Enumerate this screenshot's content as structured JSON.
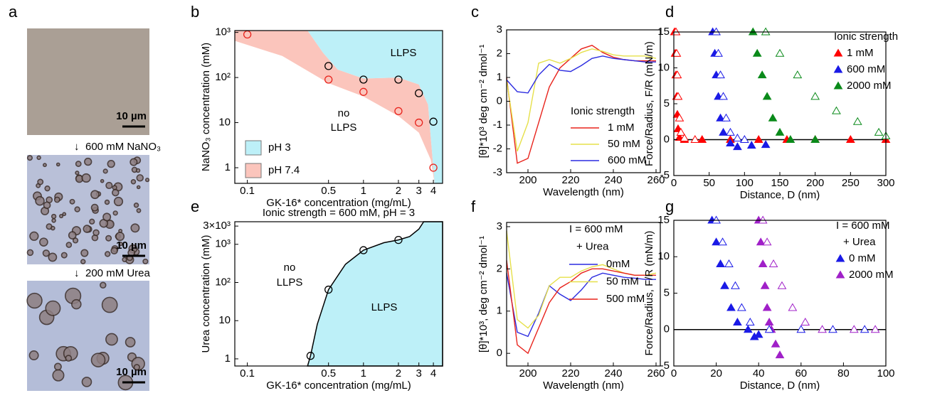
{
  "panel_a": {
    "label": "a",
    "steps": [
      "600 mM NaNO₃",
      "200 mM Urea"
    ],
    "scale_bars": [
      "10 µm",
      "10 µm",
      "10 µm"
    ]
  },
  "chart_data": [
    {
      "type": "phase",
      "panel": "b",
      "xlabel": "GK-16* concentration (mg/mL)",
      "ylabel": "NaNO₃ concentration (mM)",
      "xlog": true,
      "ylog": true,
      "xlim": [
        0.078,
        4.8
      ],
      "ylim": [
        0.45,
        1100
      ],
      "xticks": [
        0.1,
        0.5,
        1,
        2,
        3,
        4
      ],
      "yticks": [
        1,
        10,
        {
          "value": 100,
          "label": "10²"
        },
        {
          "value": 1000,
          "label": "10³"
        }
      ],
      "annotations": [
        "LLPS",
        "no",
        "LLPS"
      ],
      "series": [
        {
          "name": "pH 3",
          "color": "#bdf0f8",
          "marker_color": "#000000",
          "x": [
            0.5,
            1,
            2,
            3,
            4
          ],
          "values": [
            180,
            90,
            90,
            45,
            10.5
          ],
          "region": {
            "x": [
              0.33,
              0.45,
              0.6,
              1,
              2,
              3,
              3.6,
              4.1,
              4.8,
              4.8
            ],
            "y": [
              1100,
              350,
              150,
              95,
              100,
              70,
              25,
              0.45,
              0.45,
              1100
            ]
          }
        },
        {
          "name": "pH 7.4",
          "color": "#fbc5bc",
          "marker_color": "#e8231c",
          "x": [
            0.1,
            0.5,
            1,
            2,
            3,
            4
          ],
          "values": [
            900,
            90,
            48,
            18,
            10,
            1
          ],
          "region": {
            "x": [
              0.078,
              0.33,
              0.45,
              0.6,
              1,
              2,
              3,
              3.6,
              4.1,
              3.8,
              3,
              2,
              1,
              0.5,
              0.2,
              0.078
            ],
            "y": [
              1100,
              1100,
              350,
              150,
              95,
              100,
              70,
              25,
              0.45,
              1.5,
              6,
              14,
              38,
              75,
              300,
              650
            ]
          }
        }
      ]
    },
    {
      "type": "line",
      "panel": "c",
      "xlabel": "Wavelength (nm)",
      "ylabel": "[θ]*10³ deg cm⁻² dmol⁻¹",
      "xlim": [
        190,
        262
      ],
      "ylim": [
        -3,
        3
      ],
      "xticks": [
        200,
        220,
        240,
        260
      ],
      "yticks": [
        -3,
        -2,
        -1,
        0,
        1,
        2,
        3
      ],
      "legend_title": [
        "Ionic strength"
      ],
      "x": [
        190,
        195,
        200,
        205,
        210,
        215,
        220,
        225,
        230,
        235,
        240,
        245,
        250,
        255,
        260
      ],
      "series": [
        {
          "name": "1 mM",
          "color": "#e8231c",
          "values": [
            1.0,
            -2.6,
            -2.4,
            -0.9,
            0.6,
            1.4,
            1.8,
            2.2,
            2.35,
            2.05,
            1.85,
            1.75,
            1.7,
            1.7,
            1.7
          ]
        },
        {
          "name": "50 mM",
          "color": "#e6e04a",
          "values": [
            0.9,
            -2.1,
            -0.9,
            1.6,
            1.75,
            1.6,
            1.8,
            2.05,
            2.2,
            2.1,
            1.95,
            1.9,
            1.9,
            1.9,
            1.8
          ]
        },
        {
          "name": "600 mM",
          "color": "#2b2be0",
          "values": [
            0.9,
            0.4,
            0.35,
            1.1,
            1.55,
            1.3,
            1.25,
            1.5,
            1.8,
            1.9,
            1.8,
            1.75,
            1.7,
            1.65,
            1.65
          ]
        }
      ]
    },
    {
      "type": "scatter",
      "panel": "d",
      "xlabel": "Distance, D (nm)",
      "ylabel": "Force/Radius, F/R (mN/m)",
      "xlim": [
        0,
        300
      ],
      "ylim": [
        -5,
        15
      ],
      "xticks": [
        0,
        50,
        100,
        150,
        200,
        250,
        300
      ],
      "yticks": [
        -5,
        0,
        5,
        10,
        15
      ],
      "legend_title": [
        "Ionic strength"
      ],
      "series": [
        {
          "name": "1 mM",
          "color": "#ff0000",
          "filled": true,
          "x": [
            1,
            2,
            3,
            4,
            5,
            6,
            8,
            15,
            40,
            80,
            120,
            160,
            200,
            250,
            300
          ],
          "values": [
            15,
            12,
            9,
            6,
            3.5,
            1.5,
            0.3,
            0,
            0,
            0,
            0,
            0,
            0,
            0,
            0
          ]
        },
        {
          "name": "600 mM",
          "color": "#1a1ae6",
          "filled": true,
          "x": [
            55,
            58,
            60,
            63,
            66,
            70,
            80,
            90,
            110,
            130
          ],
          "values": [
            15,
            12,
            9,
            6,
            3,
            1,
            -0.5,
            -1,
            -0.8,
            -0.7
          ]
        },
        {
          "name": "2000 mM",
          "color": "#0a8a1a",
          "filled": true,
          "x": [
            112,
            118,
            125,
            132,
            140,
            150,
            165,
            200
          ],
          "values": [
            15,
            12,
            9,
            6,
            3,
            1,
            0,
            0
          ]
        },
        {
          "color": "#ff0000",
          "filled": false,
          "x": [
            3,
            4,
            5,
            6,
            8,
            10,
            15,
            30
          ],
          "values": [
            15,
            12,
            9,
            6,
            3,
            1,
            0.2,
            0
          ]
        },
        {
          "color": "#1a1ae6",
          "filled": false,
          "x": [
            60,
            63,
            66,
            70,
            74,
            80,
            90,
            100
          ],
          "values": [
            15,
            12,
            9,
            6,
            3,
            1,
            0.2,
            0
          ]
        },
        {
          "color": "#0a8a1a",
          "filled": false,
          "x": [
            130,
            150,
            175,
            200,
            230,
            260,
            290,
            300
          ],
          "values": [
            15,
            12,
            9,
            6,
            4,
            2.5,
            1,
            0.5
          ]
        }
      ]
    },
    {
      "type": "phase",
      "panel": "e",
      "title": "Ionic strength = 600 mM, pH = 3",
      "xlabel": "GK-16* concentration (mg/mL)",
      "ylabel": "Urea concentration (mM)",
      "xlog": true,
      "ylog": true,
      "xlim": [
        0.078,
        4.8
      ],
      "ylim": [
        0.65,
        3900
      ],
      "xticks": [
        0.1,
        0.5,
        1,
        2,
        3,
        4
      ],
      "yticks": [
        1,
        10,
        {
          "value": 100,
          "label": "10²"
        },
        {
          "value": 1000,
          "label": "10³"
        },
        {
          "value": 3000,
          "label": "3×10³"
        }
      ],
      "annotations": [
        "no",
        "LLPS",
        "LLPS"
      ],
      "series": [
        {
          "color": "#bdf0f8",
          "marker_color": "#000000",
          "edge_color": "#000000",
          "x": [
            0.35,
            0.5,
            1,
            2
          ],
          "values": [
            1.2,
            65,
            700,
            1300
          ],
          "region": {
            "x": [
              0.33,
              0.35,
              0.4,
              0.5,
              0.7,
              1,
              1.5,
              2,
              2.5,
              3,
              3.3,
              4.8,
              4.8
            ],
            "y": [
              0.65,
              1.2,
              8,
              65,
              300,
              700,
              1100,
              1300,
              1600,
              2500,
              3900,
              3900,
              0.65
            ]
          }
        }
      ]
    },
    {
      "type": "line",
      "panel": "f",
      "xlabel": "Wavelength (nm)",
      "ylabel": "[θ]*10³, deg cm⁻² dmol⁻¹",
      "xlim": [
        190,
        262
      ],
      "ylim": [
        -0.3,
        3.1
      ],
      "xticks": [
        200,
        220,
        240,
        260
      ],
      "yticks": [
        0,
        1,
        2,
        3
      ],
      "legend_title": [
        "I = 600 mM",
        "+ Urea"
      ],
      "x": [
        190,
        195,
        200,
        205,
        210,
        215,
        220,
        225,
        230,
        235,
        240,
        245,
        250,
        255,
        260
      ],
      "series": [
        {
          "name": "0mM",
          "color": "#2b2be0",
          "values": [
            1.9,
            0.5,
            0.4,
            0.95,
            1.6,
            1.4,
            1.25,
            1.5,
            1.8,
            1.9,
            1.85,
            1.8,
            1.78,
            1.75,
            1.75
          ]
        },
        {
          "name": "50 mM",
          "color": "#e6e04a",
          "values": [
            2.9,
            0.8,
            0.6,
            0.9,
            1.6,
            1.8,
            1.8,
            1.95,
            2.05,
            2.1,
            2.0,
            1.9,
            1.85,
            1.85,
            1.9
          ]
        },
        {
          "name": "500 mM",
          "color": "#e8231c",
          "values": [
            2.2,
            0.2,
            0.0,
            0.6,
            1.2,
            1.55,
            1.7,
            1.9,
            2.0,
            2.0,
            1.95,
            1.9,
            1.85,
            1.85,
            1.85
          ]
        }
      ]
    },
    {
      "type": "scatter",
      "panel": "g",
      "xlabel": "Distance, D (nm)",
      "ylabel": "Force/Radius, F/R (mN/m)",
      "xlim": [
        0,
        100
      ],
      "ylim": [
        -5,
        15
      ],
      "xticks": [
        0,
        20,
        40,
        60,
        80,
        100
      ],
      "yticks": [
        -5,
        0,
        5,
        10,
        15
      ],
      "legend_title": [
        "I = 600 mM",
        "+ Urea"
      ],
      "series": [
        {
          "name": "0 mM",
          "color": "#1a1ae6",
          "filled": true,
          "x": [
            18,
            20,
            22,
            24,
            27,
            30,
            35,
            38,
            40
          ],
          "values": [
            15,
            12,
            9,
            6,
            3,
            1,
            0,
            -1,
            -0.7
          ]
        },
        {
          "name": "2000 mM",
          "color": "#a020c8",
          "filled": true,
          "x": [
            40,
            41,
            42,
            43,
            44,
            45,
            46,
            48,
            50
          ],
          "values": [
            15,
            12,
            9,
            6,
            3,
            1,
            0,
            -2,
            -3.5
          ]
        },
        {
          "color": "#1a1ae6",
          "filled": false,
          "x": [
            20,
            23,
            26,
            29,
            32,
            36,
            45,
            60,
            75,
            90
          ],
          "values": [
            15,
            12,
            9,
            6,
            3,
            1,
            0,
            0,
            0,
            0
          ]
        },
        {
          "color": "#a020c8",
          "filled": false,
          "x": [
            42,
            44,
            47,
            51,
            56,
            62,
            70,
            85,
            95
          ],
          "values": [
            15,
            12,
            9,
            6,
            3,
            1,
            0,
            0,
            0
          ]
        }
      ]
    }
  ]
}
